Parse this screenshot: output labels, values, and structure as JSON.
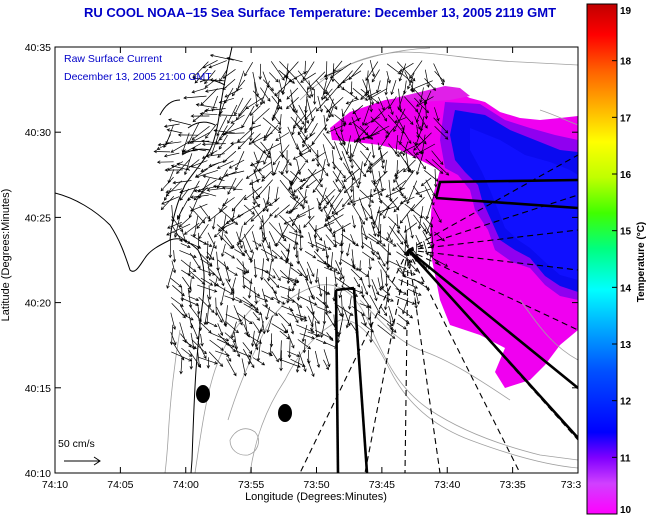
{
  "chart_data": {
    "type": "heatmap",
    "title": "RU COOL   NOAA–15  Sea Surface Temperature:  December 13, 2005 2119 GMT",
    "subtitle_line1": "Raw Surface Current",
    "subtitle_line2": "December 13, 2005 21:00 GMT",
    "xlabel": "Longitude (Degrees:Minutes)",
    "ylabel": "Latitude (Degrees:Minutes)",
    "x_ticks": [
      "74:10",
      "74:05",
      "74:00",
      "73:55",
      "73:50",
      "73:45",
      "73:40",
      "73:35",
      "73:3"
    ],
    "y_ticks": [
      "40:10",
      "40:15",
      "40:20",
      "40:25",
      "40:30",
      "40:35"
    ],
    "xlim": [
      -74.1667,
      -73.5
    ],
    "ylim": [
      40.1667,
      40.5833
    ],
    "colorbar": {
      "label": "Temperature (°C)",
      "ticks": [
        "10",
        "11",
        "12",
        "13",
        "14",
        "15",
        "16",
        "17",
        "18",
        "19"
      ],
      "range": [
        10,
        19
      ]
    },
    "scale_label": "50 cm/s",
    "colors": {
      "title": "#0000c8",
      "land_line": "#000000",
      "contour": "#a0a0a0"
    }
  }
}
